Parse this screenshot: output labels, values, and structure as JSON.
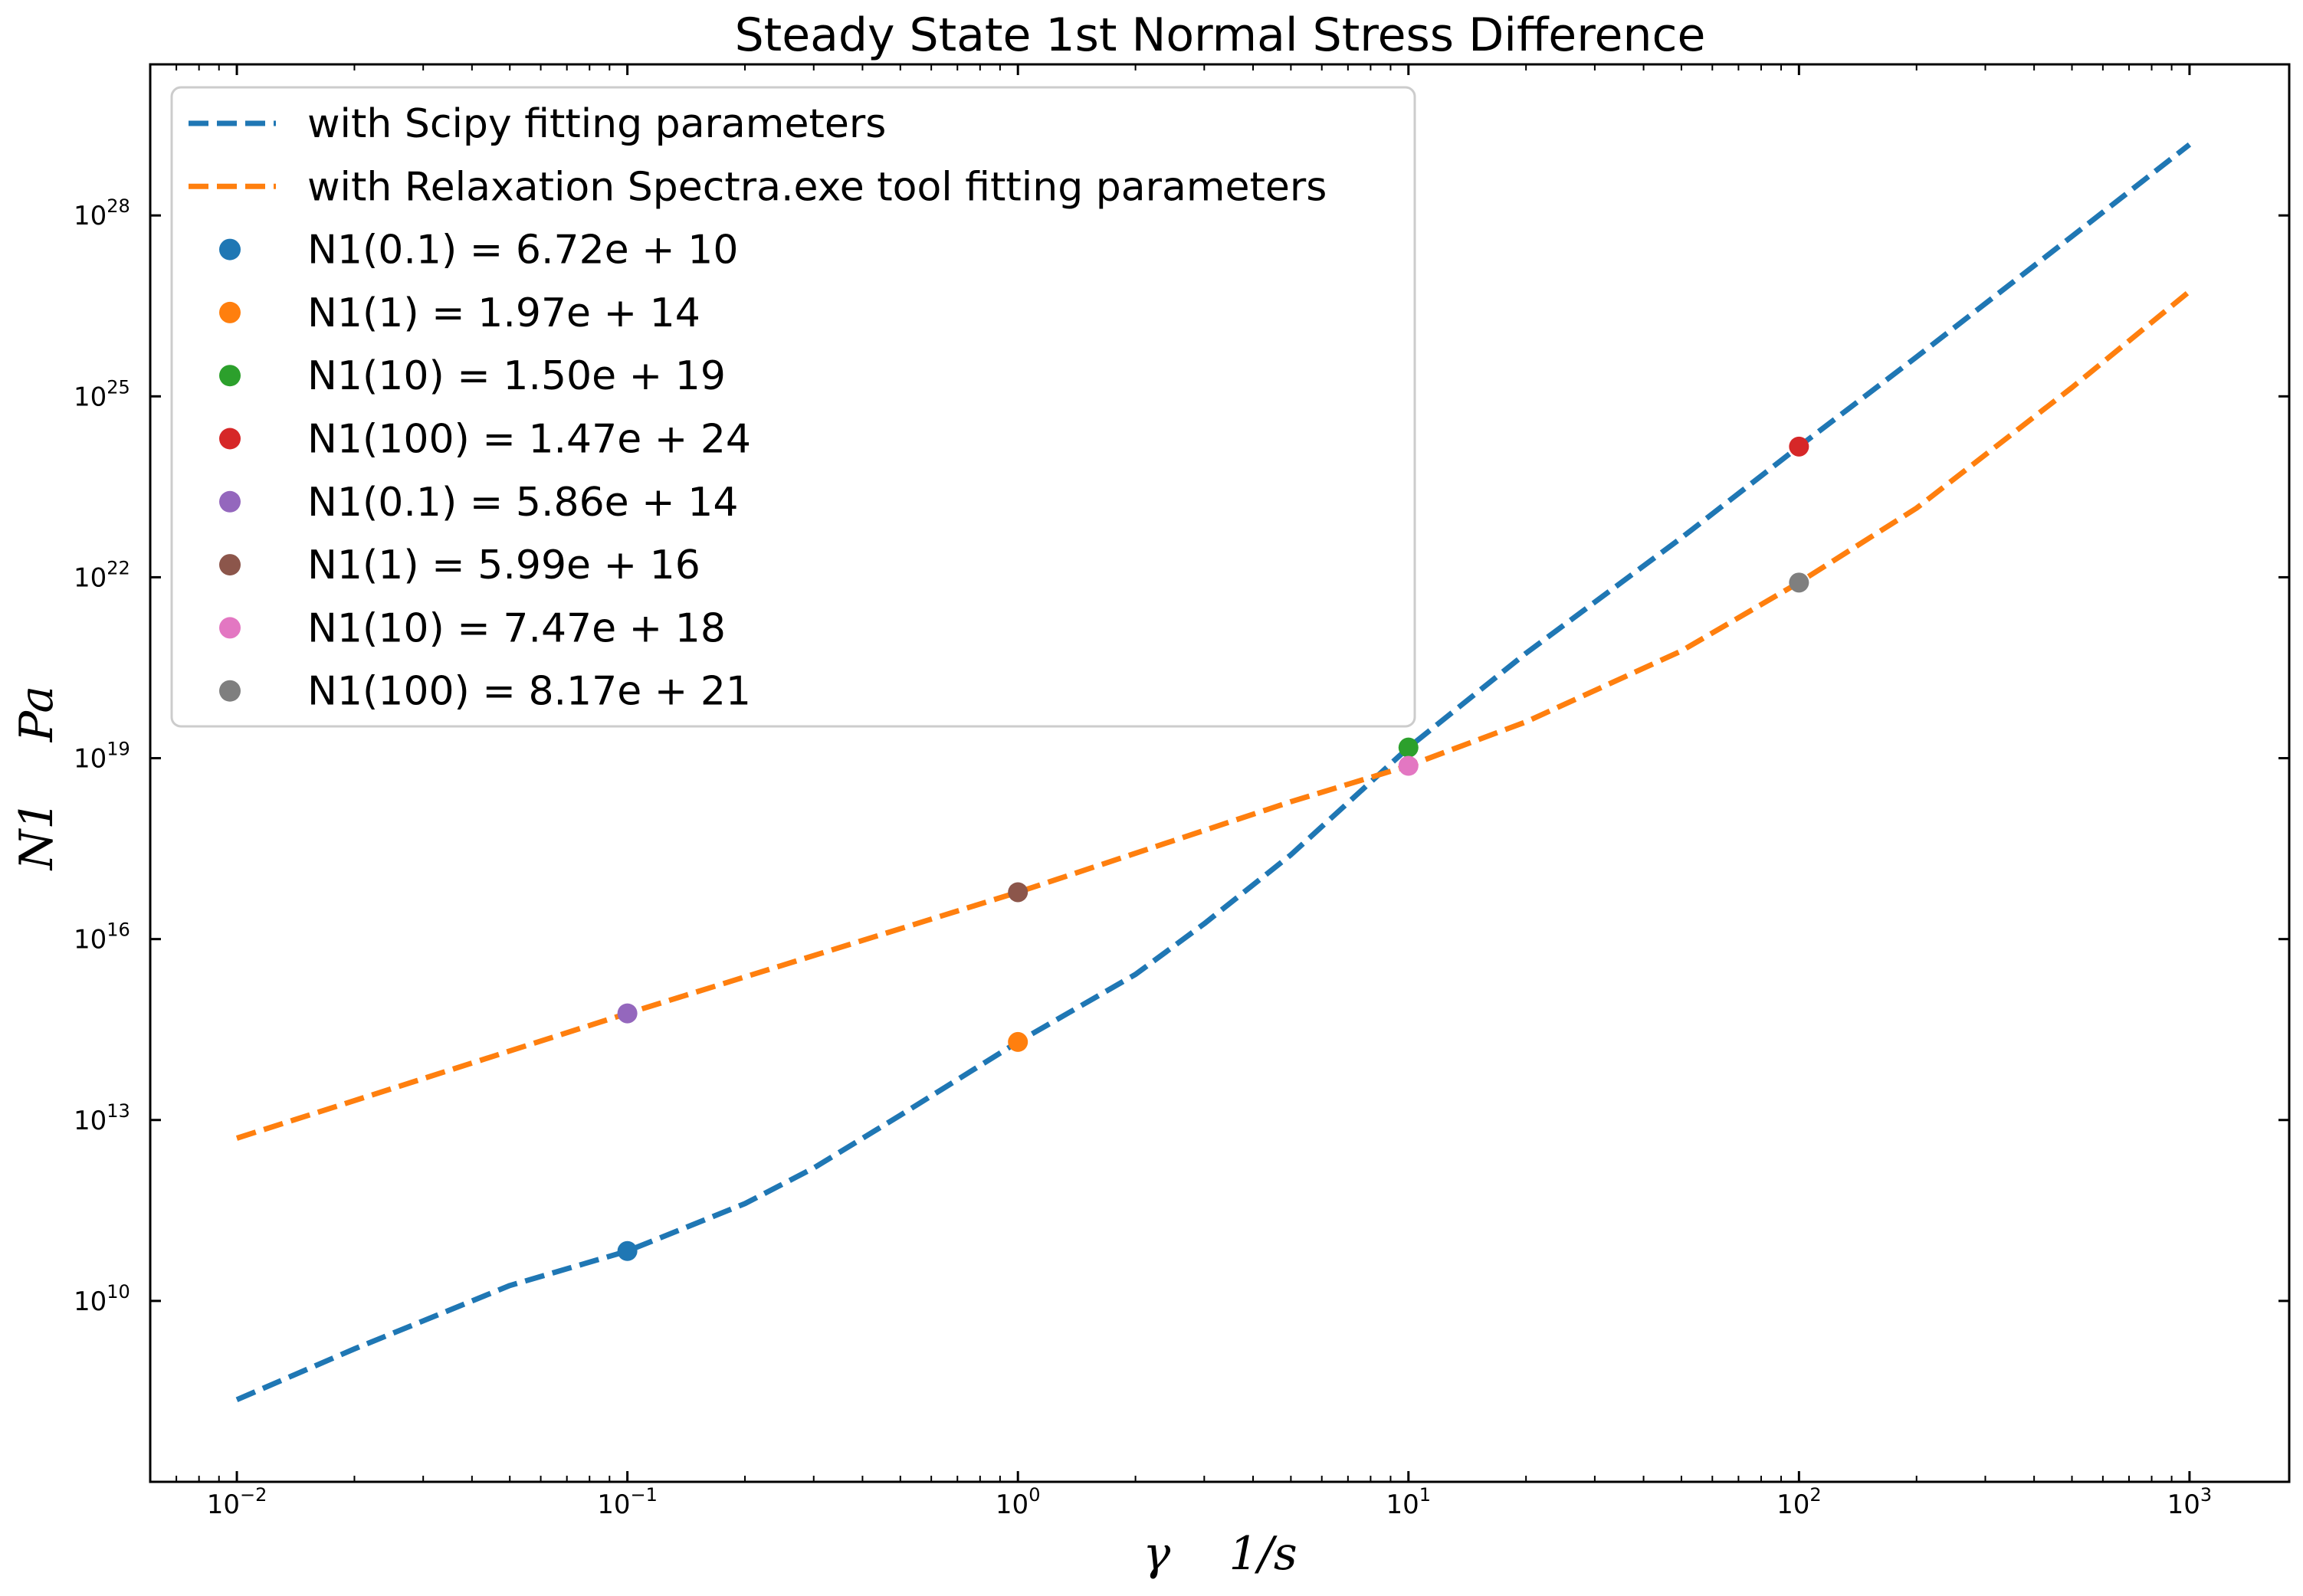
{
  "chart_data": {
    "type": "line",
    "title": "Steady State 1st Normal Stress Difference",
    "xlabel": "γ    1/s",
    "ylabel": "N1    Pa",
    "xscale": "log",
    "yscale": "log",
    "xlim": [
      0.006,
      1800
    ],
    "ylim": [
      10000000.0,
      3.2e+30
    ],
    "xticks": [
      {
        "value": 0.01,
        "base": "10",
        "exp": "−2"
      },
      {
        "value": 0.1,
        "base": "10",
        "exp": "−1"
      },
      {
        "value": 1,
        "base": "10",
        "exp": "0"
      },
      {
        "value": 10,
        "base": "10",
        "exp": "1"
      },
      {
        "value": 100,
        "base": "10",
        "exp": "2"
      },
      {
        "value": 1000,
        "base": "10",
        "exp": "3"
      }
    ],
    "yticks": [
      {
        "value": 10000000000.0,
        "base": "10",
        "exp": "10"
      },
      {
        "value": 10000000000000.0,
        "base": "10",
        "exp": "13"
      },
      {
        "value": 1e+16,
        "base": "10",
        "exp": "16"
      },
      {
        "value": 1e+19,
        "base": "10",
        "exp": "19"
      },
      {
        "value": 1e+22,
        "base": "10",
        "exp": "22"
      },
      {
        "value": 1e+25,
        "base": "10",
        "exp": "25"
      },
      {
        "value": 1e+28,
        "base": "10",
        "exp": "28"
      }
    ],
    "grid": false,
    "legend_position": "top-left",
    "series": [
      {
        "name": "with Scipy fitting parameters",
        "style": "dashed",
        "color": "#1f77b4",
        "x": [
          0.01,
          0.02,
          0.05,
          0.1,
          0.2,
          0.3,
          0.5,
          1,
          2,
          3,
          5,
          10,
          20,
          50,
          100,
          200,
          500,
          1000
        ],
        "y": [
          230000000.0,
          1600000000.0,
          18000000000.0,
          67200000000.0,
          410000000000.0,
          1600000000000.0,
          12000000000000.0,
          197000000000000.0,
          2600000000000000.0,
          1.8e+16,
          2.5e+17,
          1.5e+19,
          5.5e+20,
          4.5e+22,
          1.47e+24,
          4.5e+25,
          4.5e+27,
          1.5e+29
        ]
      },
      {
        "name": "with Relaxation Spectra.exe tool fitting parameters",
        "style": "dashed",
        "color": "#ff7f0e",
        "x": [
          0.01,
          0.1,
          1,
          5,
          10,
          20,
          50,
          100,
          200,
          500,
          1000
        ],
        "y": [
          5000000000000.0,
          586000000000000.0,
          5.99e+16,
          1.9e+18,
          7.47e+18,
          4e+19,
          6e+20,
          8.17e+21,
          1.4e+23,
          1.4e+25,
          5.5e+26
        ]
      }
    ],
    "points": [
      {
        "label": "N1(0.1) = 6.72e + 10",
        "x": 0.1,
        "y": 67200000000.0,
        "color": "#1f77b4"
      },
      {
        "label": "N1(1) = 1.97e + 14",
        "x": 1,
        "y": 197000000000000.0,
        "color": "#ff7f0e"
      },
      {
        "label": "N1(10) = 1.50e + 19",
        "x": 10,
        "y": 1.5e+19,
        "color": "#2ca02c"
      },
      {
        "label": "N1(100) = 1.47e + 24",
        "x": 100,
        "y": 1.47e+24,
        "color": "#d62728"
      },
      {
        "label": "N1(0.1) = 5.86e + 14",
        "x": 0.1,
        "y": 586000000000000.0,
        "color": "#9467bd"
      },
      {
        "label": "N1(1) = 5.99e + 16",
        "x": 1,
        "y": 5.99e+16,
        "color": "#8c564b"
      },
      {
        "label": "N1(10) = 7.47e + 18",
        "x": 10,
        "y": 7.47e+18,
        "color": "#e377c2"
      },
      {
        "label": "N1(100) = 8.17e + 21",
        "x": 100,
        "y": 8.17e+21,
        "color": "#7f7f7f"
      }
    ]
  }
}
